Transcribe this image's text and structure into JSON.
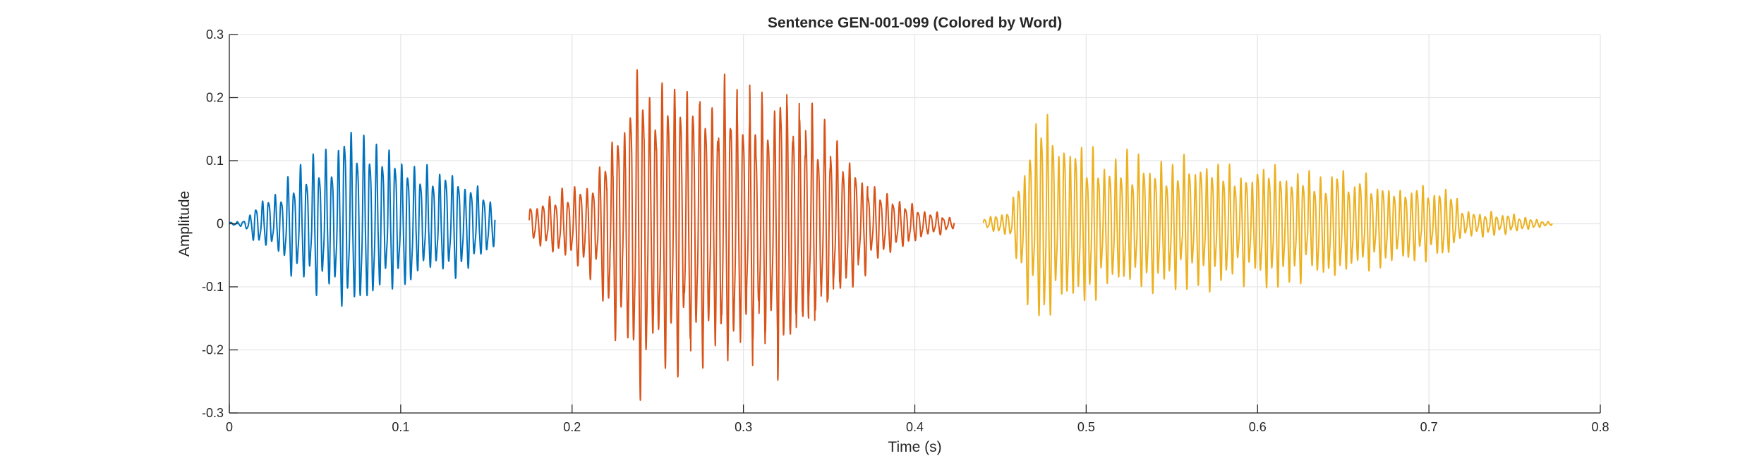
{
  "chart_data": {
    "type": "line",
    "title": "Sentence GEN-001-099 (Colored by Word)",
    "xlabel": "Time (s)",
    "ylabel": "Amplitude",
    "xlim": [
      0,
      0.8
    ],
    "ylim": [
      -0.3,
      0.3
    ],
    "xticks": [
      0,
      0.1,
      0.2,
      0.3,
      0.4,
      0.5,
      0.6,
      0.7,
      0.8
    ],
    "xtick_labels": [
      "0",
      "0.1",
      "0.2",
      "0.3",
      "0.4",
      "0.5",
      "0.6",
      "0.7",
      "0.8"
    ],
    "yticks": [
      -0.3,
      -0.2,
      -0.1,
      0,
      0.1,
      0.2,
      0.3
    ],
    "ytick_labels": [
      "-0.3",
      "-0.2",
      "-0.1",
      "0",
      "0.1",
      "0.2",
      "0.3"
    ],
    "grid": true,
    "series": [
      {
        "color": "#0072BD",
        "t_start": 0.0,
        "t_end": 0.155,
        "cycles": 42,
        "envelope": [
          [
            0.0,
            0.003
          ],
          [
            0.008,
            0.004
          ],
          [
            0.015,
            0.03
          ],
          [
            0.03,
            0.06
          ],
          [
            0.04,
            0.1
          ],
          [
            0.055,
            0.12
          ],
          [
            0.068,
            0.16
          ],
          [
            0.085,
            0.14
          ],
          [
            0.1,
            0.12
          ],
          [
            0.12,
            0.1
          ],
          [
            0.14,
            0.08
          ],
          [
            0.155,
            0.04
          ]
        ]
      },
      {
        "color": "#D95319",
        "t_start": 0.175,
        "t_end": 0.423,
        "cycles": 68,
        "envelope": [
          [
            0.175,
            0.03
          ],
          [
            0.19,
            0.05
          ],
          [
            0.205,
            0.07
          ],
          [
            0.215,
            0.1
          ],
          [
            0.225,
            0.19
          ],
          [
            0.24,
            0.27
          ],
          [
            0.26,
            0.24
          ],
          [
            0.28,
            0.25
          ],
          [
            0.3,
            0.22
          ],
          [
            0.32,
            0.26
          ],
          [
            0.34,
            0.19
          ],
          [
            0.36,
            0.12
          ],
          [
            0.38,
            0.06
          ],
          [
            0.4,
            0.03
          ],
          [
            0.423,
            0.01
          ]
        ]
      },
      {
        "color": "#EDB120",
        "t_start": 0.44,
        "t_end": 0.772,
        "cycles": 100,
        "envelope": [
          [
            0.44,
            0.008
          ],
          [
            0.455,
            0.02
          ],
          [
            0.465,
            0.12
          ],
          [
            0.472,
            0.19
          ],
          [
            0.485,
            0.15
          ],
          [
            0.5,
            0.13
          ],
          [
            0.55,
            0.11
          ],
          [
            0.6,
            0.1
          ],
          [
            0.65,
            0.09
          ],
          [
            0.7,
            0.065
          ],
          [
            0.713,
            0.06
          ],
          [
            0.72,
            0.025
          ],
          [
            0.75,
            0.015
          ],
          [
            0.772,
            0.002
          ]
        ]
      }
    ]
  }
}
